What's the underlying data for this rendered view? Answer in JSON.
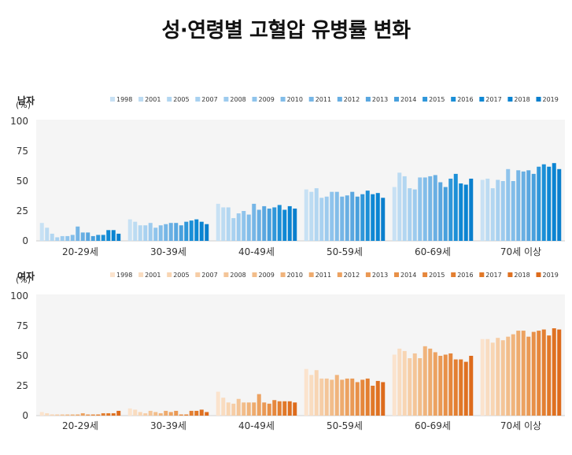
{
  "title": "성·연령별 고혈압 유병률 변화",
  "chart_data": [
    {
      "type": "bar",
      "panel_label": "남자",
      "ylabel": "(%)",
      "ylim": [
        0,
        100
      ],
      "yticks": [
        0,
        25,
        50,
        75,
        100
      ],
      "grid": false,
      "legend_position": "top-right",
      "categories": [
        "20-29세",
        "30-39세",
        "40-49세",
        "50-59세",
        "60-69세",
        "70세 이상"
      ],
      "series_names": [
        "1998",
        "2001",
        "2005",
        "2007",
        "2008",
        "2009",
        "2010",
        "2011",
        "2012",
        "2013",
        "2014",
        "2015",
        "2016",
        "2017",
        "2018",
        "2019"
      ],
      "colors": [
        "#c8e1f4",
        "#bcdbf2",
        "#b2d6f1",
        "#a8d1f0",
        "#9dcbee",
        "#8fc4ec",
        "#82bde9",
        "#76b6e6",
        "#69afe3",
        "#5aa7e0",
        "#48a0dd",
        "#2f97da",
        "#1b8fd7",
        "#0f88d4",
        "#0a84d2",
        "#0a7fcd"
      ],
      "values": [
        [
          15,
          11,
          6,
          3,
          4,
          4,
          5,
          12,
          7,
          7,
          4,
          5,
          5,
          9,
          9,
          6
        ],
        [
          18,
          16,
          13,
          13,
          15,
          11,
          13,
          14,
          15,
          15,
          13,
          16,
          17,
          18,
          16,
          14
        ],
        [
          31,
          28,
          28,
          19,
          23,
          25,
          22,
          31,
          26,
          29,
          27,
          28,
          30,
          26,
          29,
          27
        ],
        [
          43,
          41,
          44,
          36,
          37,
          41,
          41,
          37,
          38,
          41,
          37,
          39,
          42,
          39,
          40,
          36
        ],
        [
          45,
          57,
          54,
          44,
          43,
          53,
          53,
          54,
          55,
          49,
          45,
          52,
          56,
          48,
          47,
          52
        ],
        [
          51,
          52,
          44,
          51,
          50,
          60,
          50,
          59,
          58,
          59,
          56,
          62,
          64,
          62,
          65,
          60
        ]
      ]
    },
    {
      "type": "bar",
      "panel_label": "여자",
      "ylabel": "(%)",
      "ylim": [
        0,
        100
      ],
      "yticks": [
        0,
        25,
        50,
        75,
        100
      ],
      "grid": false,
      "legend_position": "top-right",
      "categories": [
        "20-29세",
        "30-39세",
        "40-49세",
        "50-59세",
        "60-69세",
        "70세 이상"
      ],
      "series_names": [
        "1998",
        "2001",
        "2005",
        "2007",
        "2008",
        "2009",
        "2010",
        "2011",
        "2012",
        "2013",
        "2014",
        "2015",
        "2016",
        "2017",
        "2018",
        "2019"
      ],
      "colors": [
        "#fbe3cd",
        "#f9dcc0",
        "#f8d5b3",
        "#f6cda6",
        "#f4c598",
        "#f2bd8a",
        "#f0b47c",
        "#eeab6e",
        "#eca261",
        "#ea9955",
        "#e89048",
        "#e6873c",
        "#e37f31",
        "#e17828",
        "#df7121",
        "#dd6b1c"
      ],
      "values": [
        [
          3,
          2,
          1,
          1,
          1,
          1,
          1,
          1,
          2,
          1,
          1,
          1,
          2,
          2,
          2,
          4
        ],
        [
          6,
          5,
          3,
          2,
          4,
          3,
          2,
          4,
          3,
          4,
          1,
          1,
          4,
          4,
          5,
          3
        ],
        [
          20,
          15,
          11,
          10,
          14,
          11,
          11,
          11,
          18,
          11,
          10,
          13,
          12,
          12,
          12,
          11
        ],
        [
          39,
          34,
          38,
          31,
          31,
          30,
          34,
          30,
          31,
          31,
          28,
          30,
          31,
          25,
          29,
          28
        ],
        [
          51,
          56,
          54,
          48,
          52,
          48,
          58,
          56,
          53,
          50,
          51,
          52,
          47,
          47,
          45,
          50
        ],
        [
          64,
          64,
          61,
          65,
          63,
          66,
          68,
          71,
          71,
          66,
          70,
          71,
          72,
          67,
          73,
          72
        ]
      ]
    }
  ]
}
